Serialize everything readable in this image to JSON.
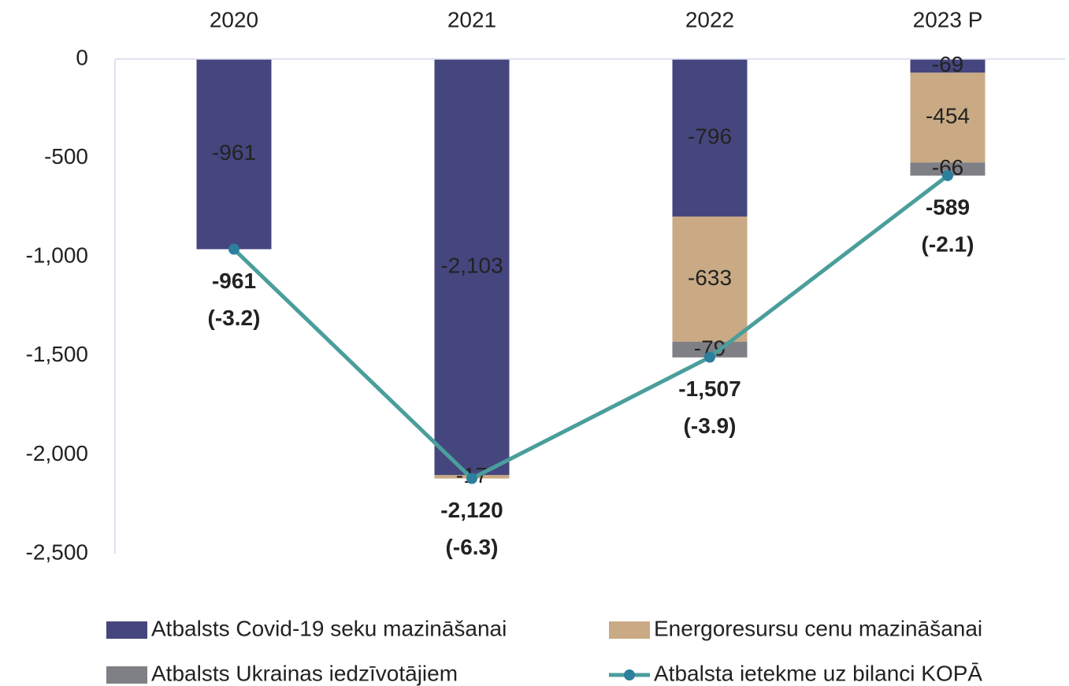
{
  "chart_data": {
    "type": "stacked_bar_line",
    "categories": [
      "2020",
      "2021",
      "2022",
      "2023 P"
    ],
    "ylim": [
      -2500,
      0
    ],
    "yticks": [
      0,
      -500,
      {
        "value": -1000,
        "label": "-1,000"
      },
      {
        "value": -1500,
        "label": "-1,500"
      },
      {
        "value": -2000,
        "label": "-2,000"
      },
      {
        "value": -2500,
        "label": "-2,500"
      }
    ],
    "grid": false,
    "legend": "bottom",
    "series": [
      {
        "name": "Atbalsts Covid-19 seku mazināšanai",
        "type": "bar",
        "color": "#45467e",
        "label_color": "#c9aa84",
        "values": [
          -961,
          -2103,
          -796,
          -69
        ],
        "value_labels": [
          "-961",
          "-2,103",
          "-796",
          "-69"
        ]
      },
      {
        "name": "Energoresursu cenu mazināšanai",
        "type": "bar",
        "color": "#c9aa84",
        "label_color": "#333333",
        "values": [
          null,
          -17,
          -633,
          -454
        ],
        "value_labels": [
          null,
          "-17",
          "-633",
          "-454"
        ]
      },
      {
        "name": "Atbalsts Ukrainas iedzīvotājiem",
        "type": "bar",
        "color": "#7f7f86",
        "label_color": "#333333",
        "values": [
          null,
          null,
          -79,
          -66
        ],
        "value_labels": [
          null,
          null,
          "-79",
          "-66"
        ]
      },
      {
        "name": "Atbalsta ietekme uz bilanci KOPĀ",
        "type": "line",
        "color": "#4a9e9c",
        "marker_color": "#2d7f9e",
        "label_color": "#2e2f5a",
        "values": [
          -961,
          -2120,
          -1507,
          -589
        ],
        "value_labels": [
          "-961",
          "-2,120",
          "-1,507",
          "-589"
        ],
        "secondary_labels": [
          "(-3.2)",
          "(-6.3)",
          "(-3.9)",
          "(-2.1)"
        ]
      }
    ]
  }
}
